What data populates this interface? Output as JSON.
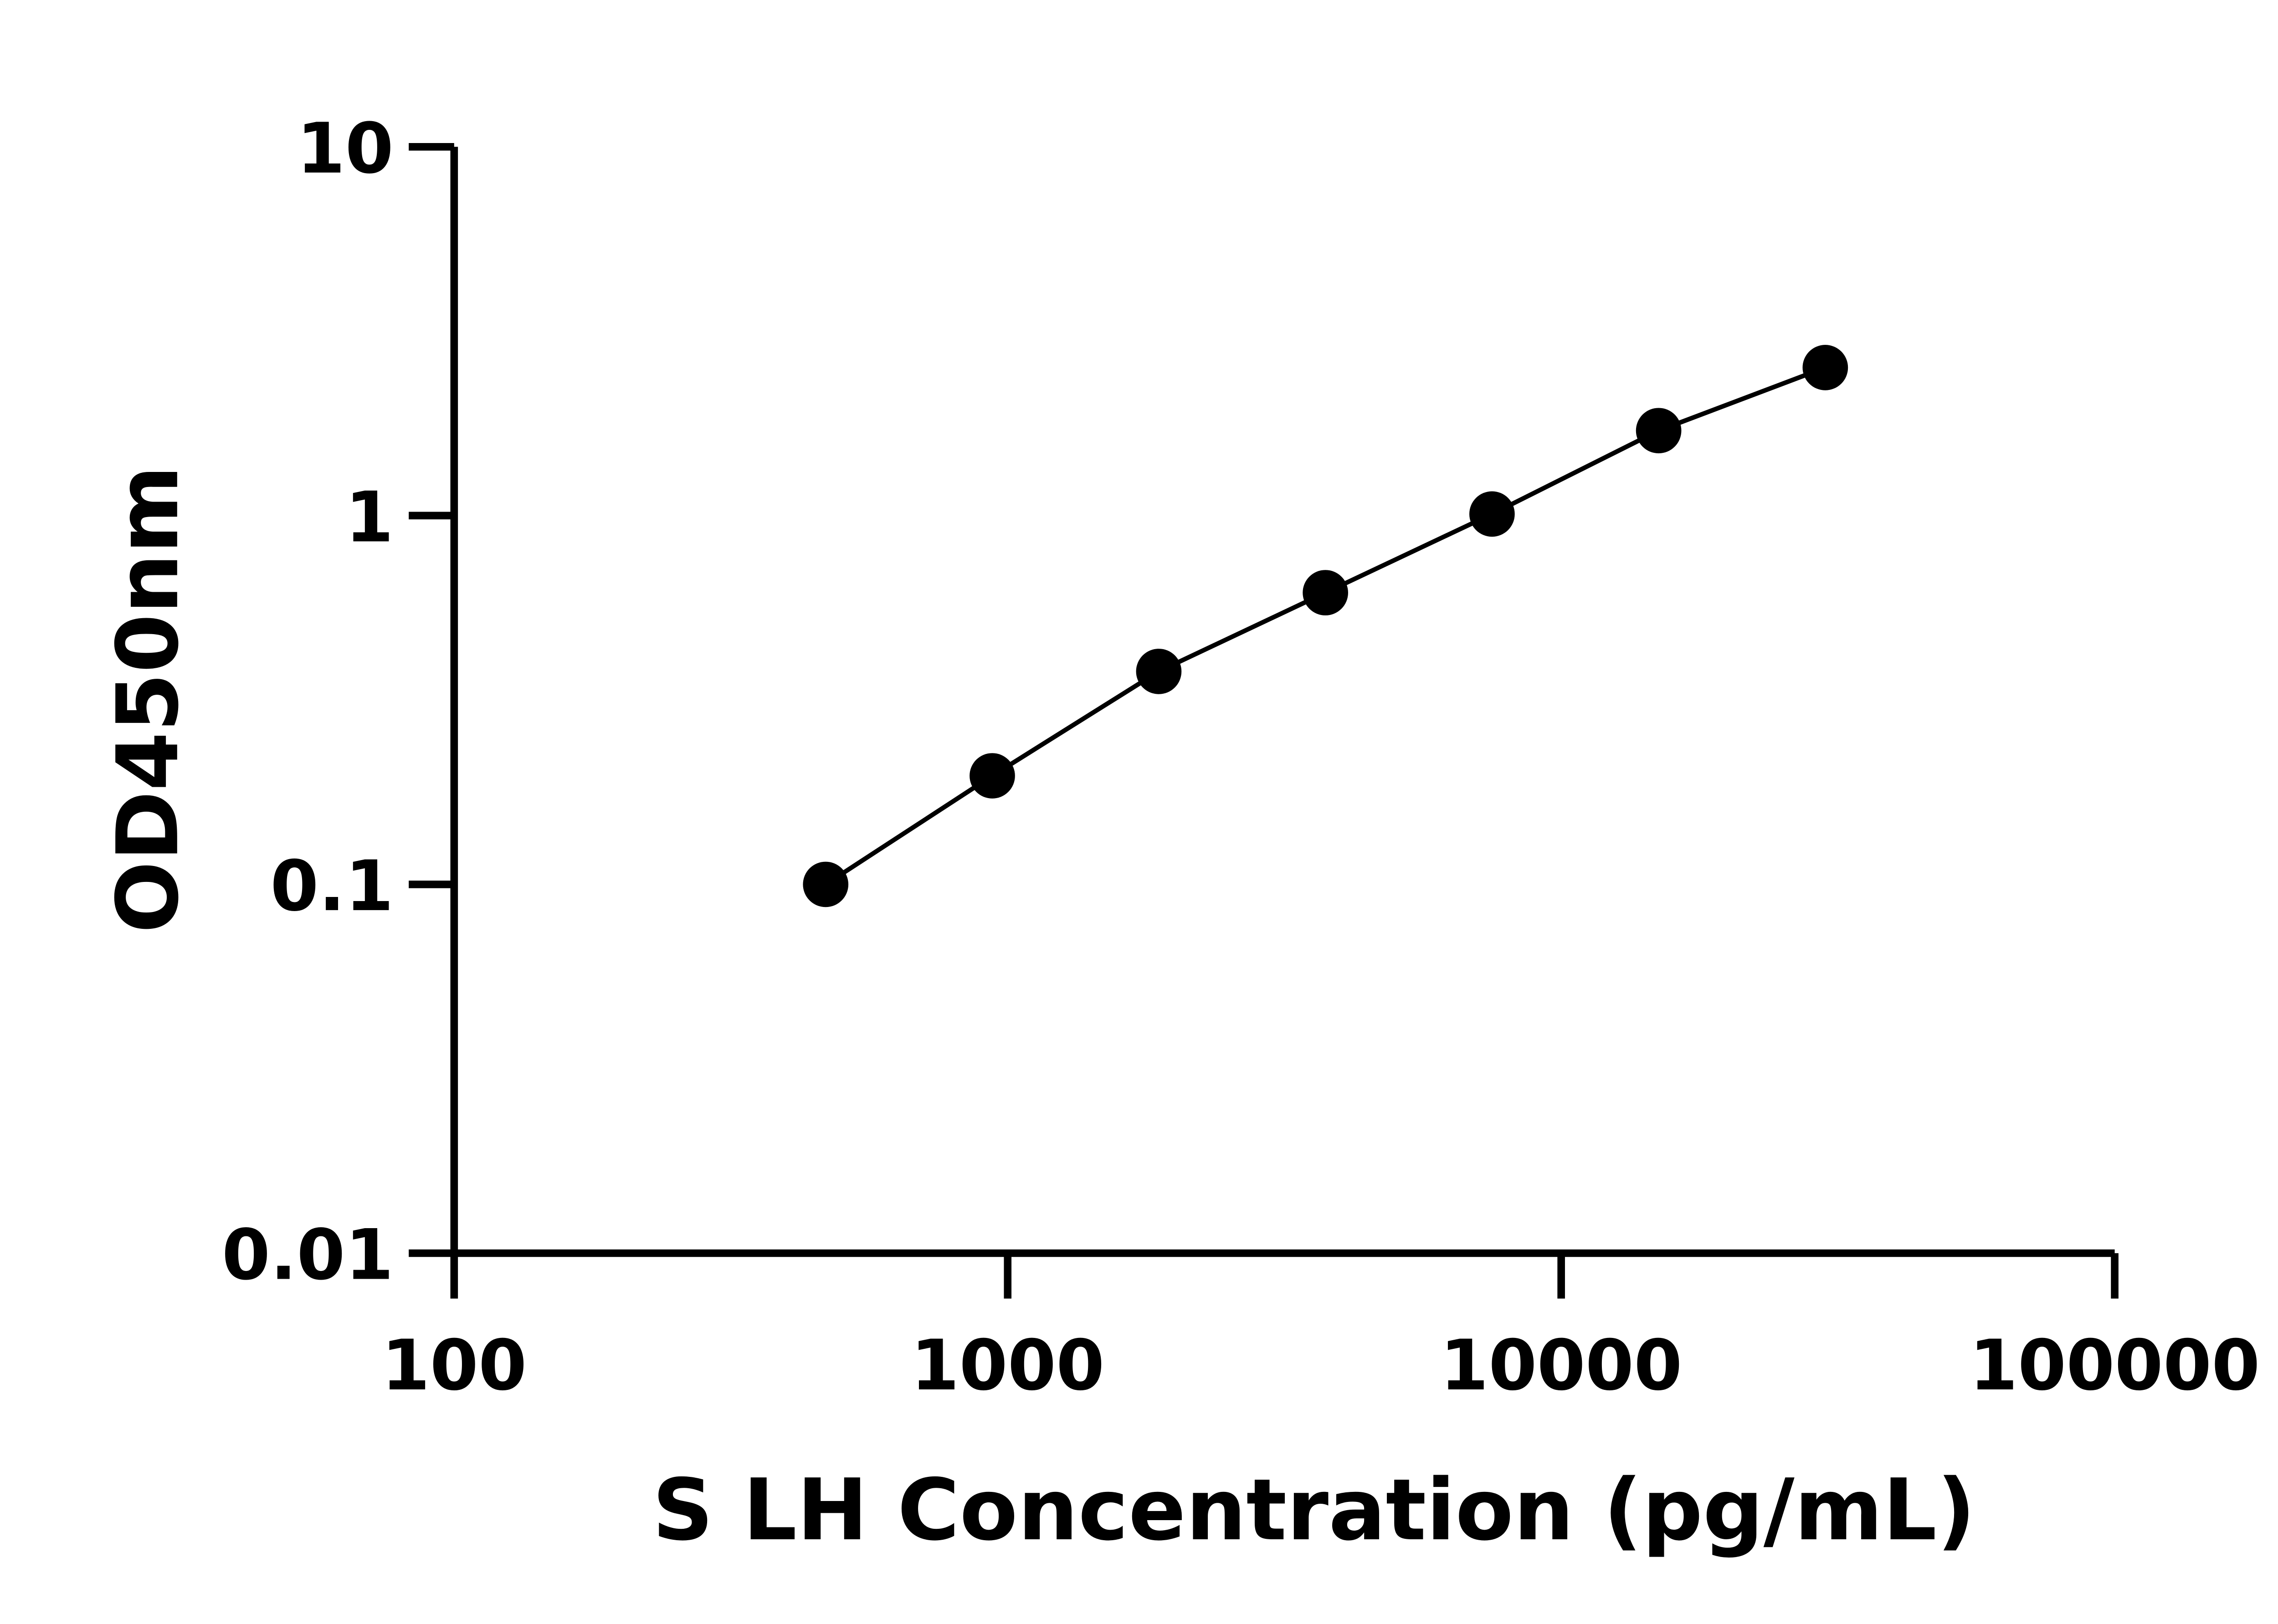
{
  "chart_data": {
    "type": "line",
    "title": "",
    "xlabel": "S LH Concentration (pg/mL)",
    "ylabel": "OD450nm",
    "xscale": "log",
    "yscale": "log",
    "xlim": [
      100,
      100000
    ],
    "ylim": [
      0.01,
      10
    ],
    "xticks": [
      100,
      1000,
      10000,
      100000
    ],
    "xtick_labels": [
      "100",
      "1000",
      "10000",
      "100000"
    ],
    "yticks": [
      0.01,
      0.1,
      1,
      10
    ],
    "ytick_labels": [
      "0.01",
      "0.1",
      "1",
      "10"
    ],
    "grid": false,
    "marker": "filled-circle",
    "color": "#000000",
    "series": [
      {
        "x": [
          469,
          938,
          1875,
          3750,
          7500,
          15000,
          30000
        ],
        "y": [
          0.1,
          0.197,
          0.378,
          0.618,
          1.01,
          1.7,
          2.52
        ]
      }
    ]
  }
}
